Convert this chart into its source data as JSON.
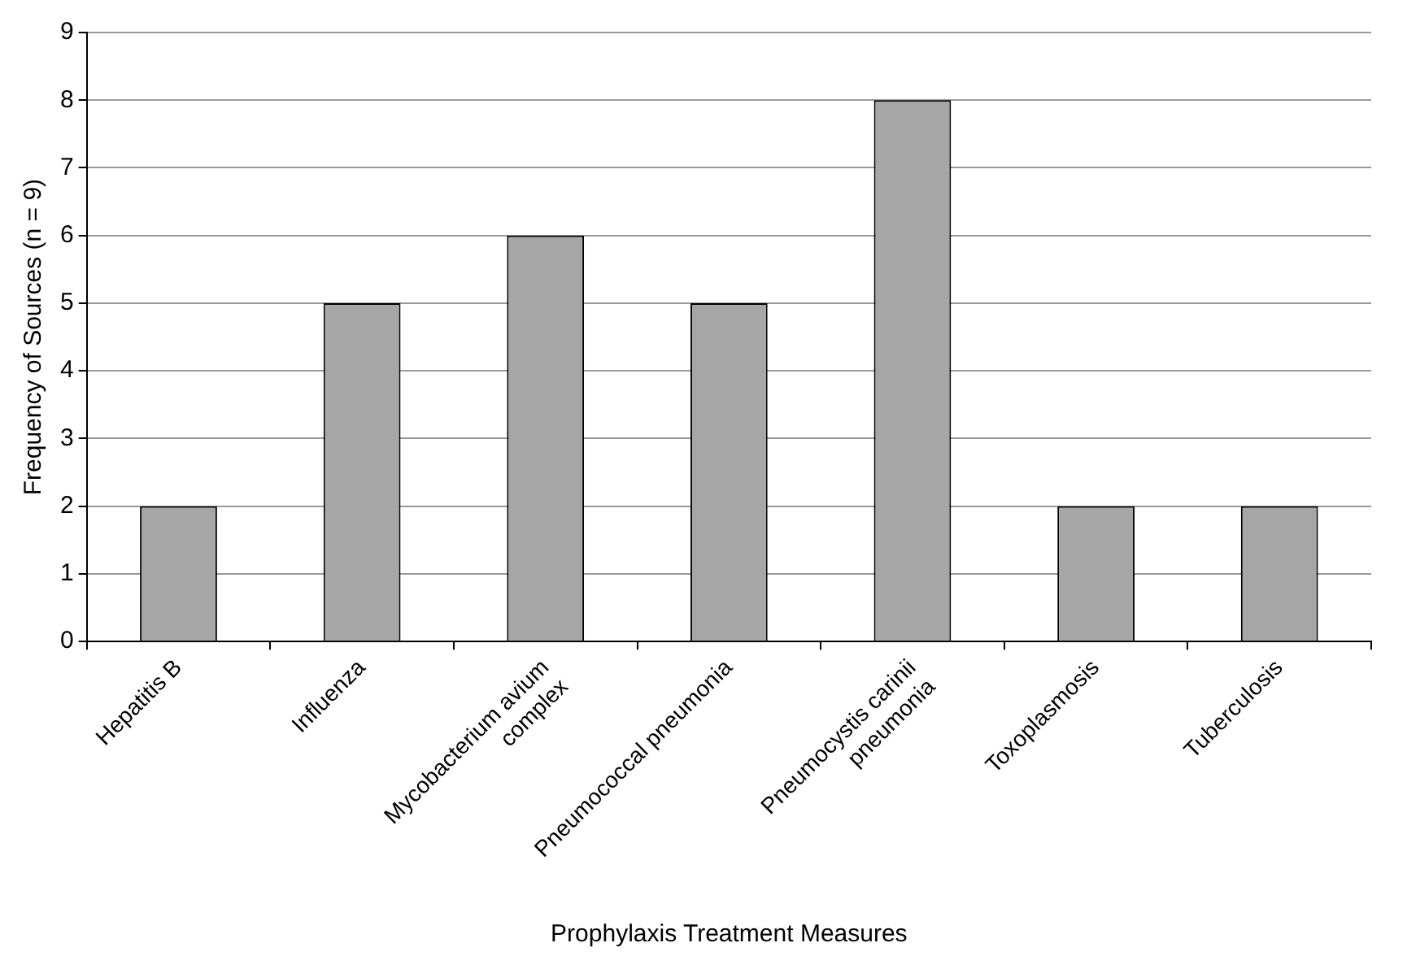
{
  "chart_data": {
    "type": "bar",
    "xlabel": "Prophylaxis Treatment Measures",
    "ylabel": "Frequency of Sources (n = 9)",
    "categories": [
      "Hepatitis B",
      "Influenza",
      "Mycobacterium avium\ncomplex",
      "Pneumococcal pneumonia",
      "Pneumocystis carinii\npneumonia",
      "Toxoplasmosis",
      "Tuberculosis"
    ],
    "values": [
      2,
      5,
      6,
      5,
      8,
      2,
      2
    ],
    "color": "#a6a6a6",
    "ylim": [
      0,
      9
    ],
    "yticks": [
      0,
      1,
      2,
      3,
      4,
      5,
      6,
      7,
      8,
      9
    ],
    "grid": "y",
    "legend": false
  }
}
